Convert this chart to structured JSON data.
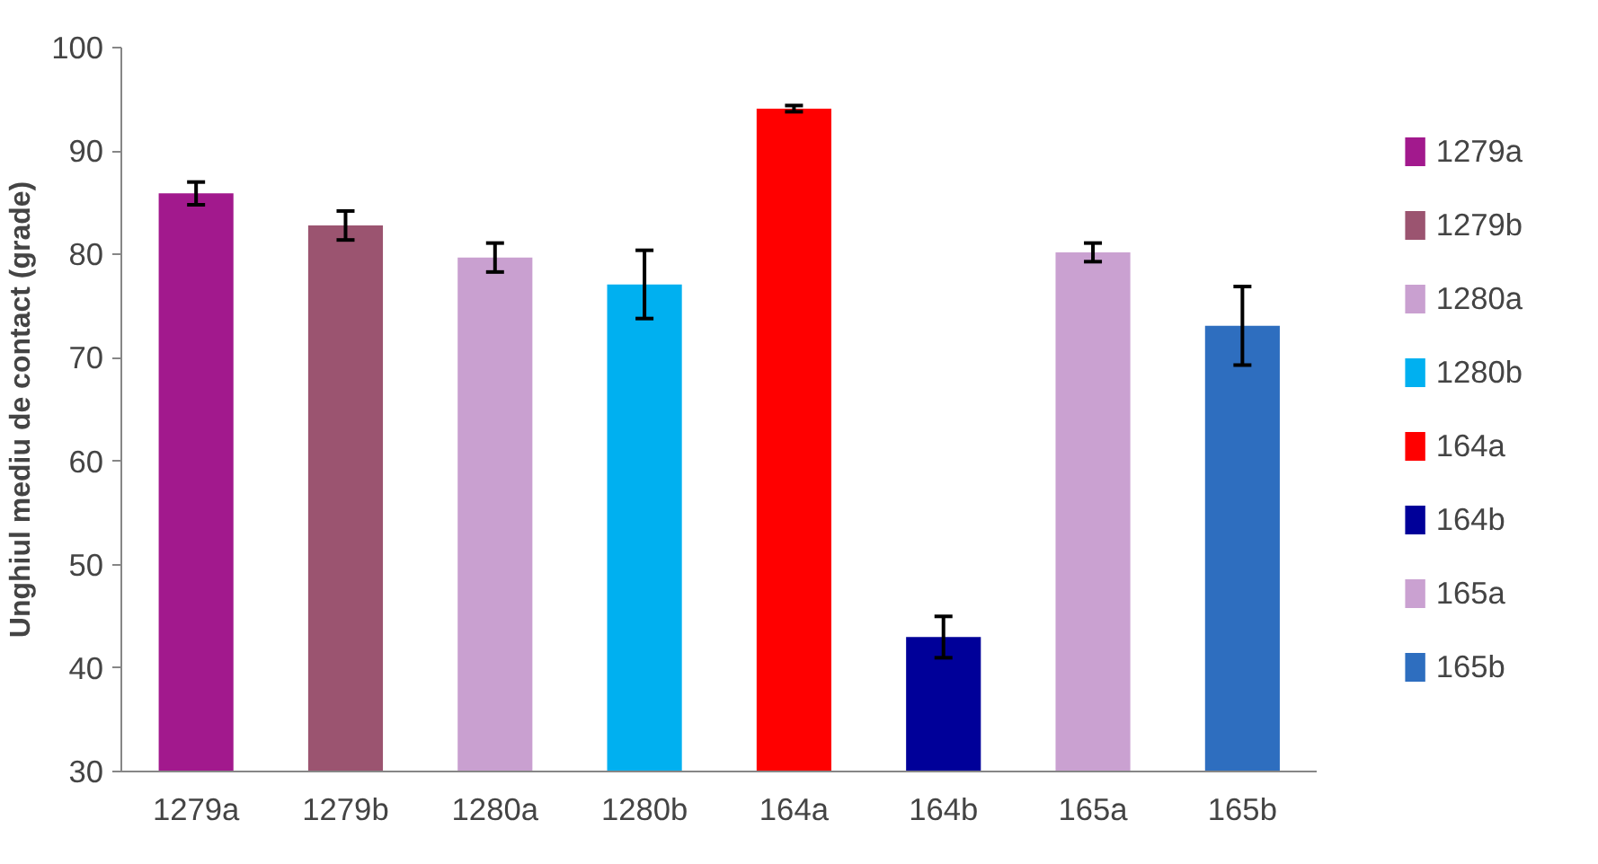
{
  "chart_data": {
    "type": "bar",
    "ylabel": "Unghiul mediu de contact (grade)",
    "categories": [
      "1279a",
      "1279b",
      "1280a",
      "1280b",
      "164a",
      "164b",
      "165a",
      "165b"
    ],
    "series": [
      {
        "name": "1279a",
        "color": "#a2198d",
        "values": [
          85.9,
          null,
          null,
          null,
          null,
          null,
          null,
          null
        ],
        "errors": [
          1.1,
          null,
          null,
          null,
          null,
          null,
          null,
          null
        ]
      },
      {
        "name": "1279b",
        "color": "#9b5470",
        "values": [
          null,
          82.8,
          null,
          null,
          null,
          null,
          null,
          null
        ],
        "errors": [
          null,
          1.4,
          null,
          null,
          null,
          null,
          null,
          null
        ]
      },
      {
        "name": "1280a",
        "color": "#c9a0d0",
        "values": [
          null,
          null,
          79.7,
          null,
          null,
          null,
          null,
          null
        ],
        "errors": [
          null,
          null,
          1.4,
          null,
          null,
          null,
          null,
          null
        ]
      },
      {
        "name": "1280b",
        "color": "#00b0f0",
        "values": [
          null,
          null,
          null,
          77.1,
          null,
          null,
          null,
          null
        ],
        "errors": [
          null,
          null,
          null,
          3.3,
          null,
          null,
          null,
          null
        ]
      },
      {
        "name": "164a",
        "color": "#ff0000",
        "values": [
          null,
          null,
          null,
          null,
          94.1,
          null,
          null,
          null
        ],
        "errors": [
          null,
          null,
          null,
          null,
          0.3,
          null,
          null,
          null
        ]
      },
      {
        "name": "164b",
        "color": "#000099",
        "values": [
          null,
          null,
          null,
          null,
          null,
          43.0,
          null,
          null
        ],
        "errors": [
          null,
          null,
          null,
          null,
          null,
          2.0,
          null,
          null
        ]
      },
      {
        "name": "165a",
        "color": "#caa1d1",
        "values": [
          null,
          null,
          null,
          null,
          null,
          null,
          80.2,
          null
        ],
        "errors": [
          null,
          null,
          null,
          null,
          null,
          null,
          0.9,
          null
        ]
      },
      {
        "name": "165b",
        "color": "#2e6ebf",
        "values": [
          null,
          null,
          null,
          null,
          null,
          null,
          null,
          73.1
        ],
        "errors": [
          null,
          null,
          null,
          null,
          null,
          null,
          null,
          3.8
        ]
      }
    ],
    "ylim": [
      30,
      100
    ],
    "yticks": [
      30,
      40,
      50,
      60,
      70,
      80,
      90,
      100
    ],
    "grid": false,
    "legend": "right"
  }
}
